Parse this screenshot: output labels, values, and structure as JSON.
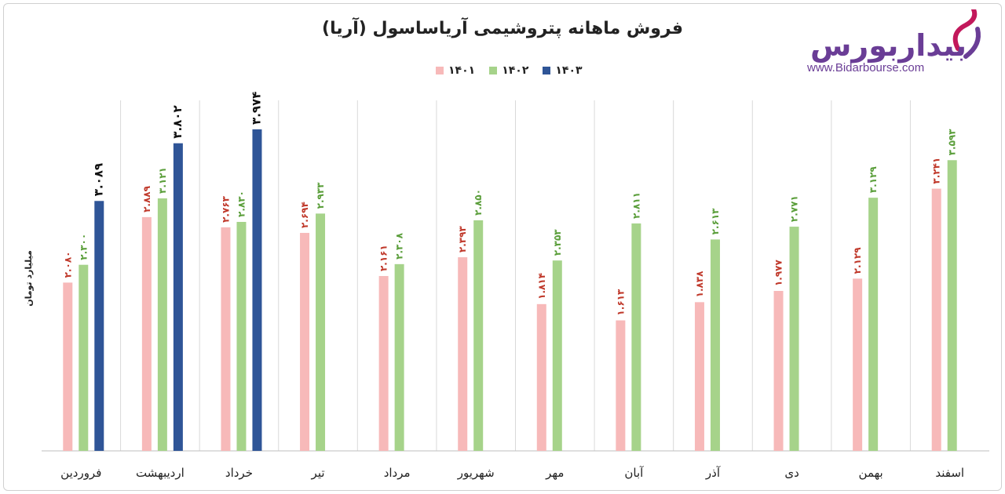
{
  "title": "فروش ماهانه پتروشیمی آریاساسول (آریا)",
  "logo": {
    "text": "بیداربورس",
    "url": "www.Bidarbourse.com"
  },
  "chart_data": {
    "type": "bar",
    "title": "فروش ماهانه پتروشیمی آریاساسول (آریا)",
    "ylabel": "میلیارد تومان",
    "xlabel": "",
    "ylim": [
      0,
      4.4
    ],
    "grid": false,
    "legend_position": "top-center",
    "categories": [
      "فروردین",
      "اردیبهشت",
      "خرداد",
      "تیر",
      "مرداد",
      "شهریور",
      "مهر",
      "آبان",
      "آذر",
      "دی",
      "بهمن",
      "اسفند"
    ],
    "series": [
      {
        "name": "۱۴۰۱",
        "color": "#f7b9b9",
        "label_color": "#c0392b",
        "values": [
          2.08,
          2.889,
          2.763,
          2.694,
          2.161,
          2.393,
          1.814,
          1.613,
          1.838,
          1.977,
          2.129,
          3.241
        ],
        "labels": [
          "۲.۰۸۰",
          "۲.۸۸۹",
          "۲.۷۶۳",
          "۲.۶۹۴",
          "۲.۱۶۱",
          "۲.۳۹۳",
          "۱.۸۱۴",
          "۱.۶۱۳",
          "۱.۸۳۸",
          "۱.۹۷۷",
          "۲.۱۲۹",
          "۳.۲۴۱"
        ]
      },
      {
        "name": "۱۴۰۲",
        "color": "#a6d38a",
        "label_color": "#5a9e3a",
        "values": [
          2.3,
          3.121,
          2.83,
          2.933,
          2.308,
          2.85,
          2.353,
          2.811,
          2.613,
          2.771,
          3.129,
          3.593
        ],
        "labels": [
          "۲.۳۰۰",
          "۳.۱۲۱",
          "۲.۸۳۰",
          "۲.۹۳۳",
          "۲.۳۰۸",
          "۲.۸۵۰",
          "۲.۳۵۳",
          "۲.۸۱۱",
          "۲.۶۱۳",
          "۲.۷۷۱",
          "۳.۱۲۹",
          "۳.۵۹۳"
        ]
      },
      {
        "name": "۱۴۰۳",
        "color": "#2f5597",
        "label_color": "#111111",
        "values": [
          3.089,
          3.802,
          3.974,
          null,
          null,
          null,
          null,
          null,
          null,
          null,
          null,
          null
        ],
        "labels": [
          "۳.۰۸۹",
          "۳.۸۰۲",
          "۳.۹۷۴",
          "",
          "",
          "",
          "",
          "",
          "",
          "",
          "",
          ""
        ]
      }
    ]
  }
}
